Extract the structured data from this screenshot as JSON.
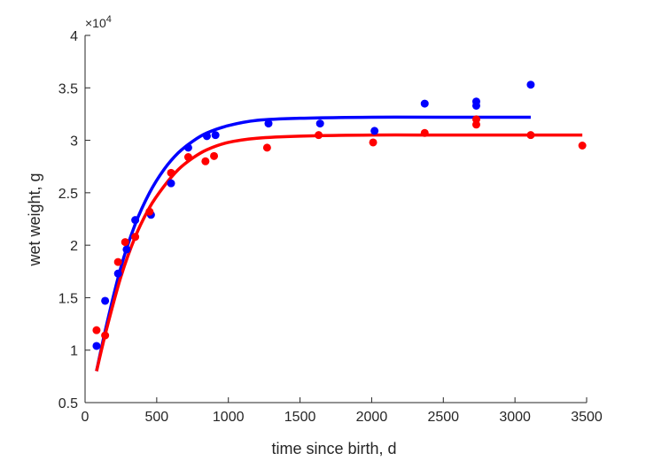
{
  "chart_data": {
    "type": "scatter",
    "title": "",
    "xlabel": "time since birth, d",
    "ylabel": "wet weight, g",
    "y_multiplier": "×10",
    "y_multiplier_exp": "4",
    "xlim": [
      0,
      3500
    ],
    "ylim": [
      0.5,
      4
    ],
    "x_ticks": [
      "0",
      "500",
      "1000",
      "1500",
      "2000",
      "2500",
      "3000",
      "3500"
    ],
    "y_ticks": [
      "0.5",
      "1",
      "1.5",
      "2",
      "2.5",
      "3",
      "3.5",
      "4"
    ],
    "grid": false,
    "legend": "none",
    "series": [
      {
        "color": "#0000ff",
        "points": [
          [
            80,
            1.04
          ],
          [
            140,
            1.47
          ],
          [
            230,
            1.73
          ],
          [
            290,
            1.96
          ],
          [
            350,
            2.24
          ],
          [
            460,
            2.29
          ],
          [
            600,
            2.59
          ],
          [
            720,
            2.93
          ],
          [
            850,
            3.04
          ],
          [
            910,
            3.05
          ],
          [
            1280,
            3.16
          ],
          [
            1640,
            3.16
          ],
          [
            2020,
            3.09
          ],
          [
            2370,
            3.35
          ],
          [
            2730,
            3.33
          ],
          [
            2730,
            3.37
          ],
          [
            3110,
            3.53
          ]
        ],
        "fit": [
          [
            80,
            0.8
          ],
          [
            150,
            1.24
          ],
          [
            250,
            1.79
          ],
          [
            350,
            2.2
          ],
          [
            450,
            2.5
          ],
          [
            550,
            2.72
          ],
          [
            650,
            2.88
          ],
          [
            750,
            2.99
          ],
          [
            850,
            3.07
          ],
          [
            1000,
            3.14
          ],
          [
            1200,
            3.19
          ],
          [
            1500,
            3.21
          ],
          [
            2000,
            3.22
          ],
          [
            2500,
            3.22
          ],
          [
            3110,
            3.22
          ]
        ]
      },
      {
        "color": "#ff0000",
        "points": [
          [
            80,
            1.19
          ],
          [
            140,
            1.14
          ],
          [
            230,
            1.84
          ],
          [
            280,
            2.03
          ],
          [
            350,
            2.08
          ],
          [
            450,
            2.32
          ],
          [
            600,
            2.69
          ],
          [
            720,
            2.84
          ],
          [
            840,
            2.8
          ],
          [
            900,
            2.85
          ],
          [
            1270,
            2.93
          ],
          [
            1630,
            3.05
          ],
          [
            2010,
            2.98
          ],
          [
            2370,
            3.07
          ],
          [
            2730,
            3.15
          ],
          [
            2730,
            3.2
          ],
          [
            3110,
            3.05
          ],
          [
            3470,
            2.95
          ]
        ],
        "fit": [
          [
            80,
            0.8
          ],
          [
            150,
            1.2
          ],
          [
            250,
            1.7
          ],
          [
            350,
            2.08
          ],
          [
            450,
            2.36
          ],
          [
            550,
            2.56
          ],
          [
            650,
            2.72
          ],
          [
            750,
            2.83
          ],
          [
            850,
            2.91
          ],
          [
            1000,
            2.98
          ],
          [
            1200,
            3.02
          ],
          [
            1500,
            3.04
          ],
          [
            2000,
            3.05
          ],
          [
            2500,
            3.05
          ],
          [
            3000,
            3.05
          ],
          [
            3470,
            3.05
          ]
        ]
      }
    ]
  }
}
